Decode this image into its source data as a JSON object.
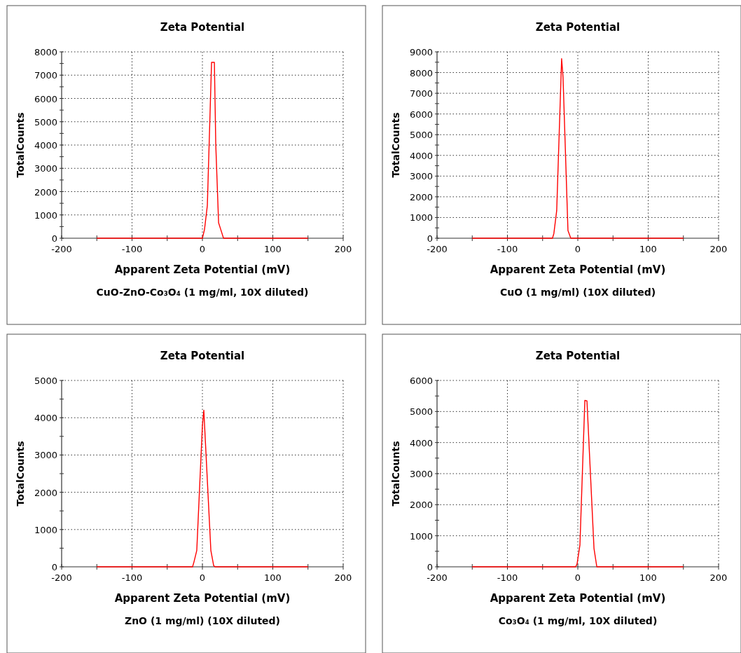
{
  "chart_data": [
    {
      "type": "line",
      "title": "Zeta Potential",
      "xlabel": "Apparent Zeta Potential (mV)",
      "ylabel": "TotalCounts",
      "annotations": [
        "CuO-ZnO-Co₃O₄ (1 mg/ml, 10X diluted)"
      ],
      "xlim": [
        -200,
        200
      ],
      "xticks": [
        -200,
        {
          "value": -150,
          "label": null
        },
        -100,
        {
          "value": -50,
          "label": null
        },
        0,
        {
          "value": 50,
          "label": null
        },
        100,
        {
          "value": 150,
          "label": null
        },
        200
      ],
      "ylim": [
        0,
        8000
      ],
      "yticks": [
        0,
        {
          "value": 500,
          "label": null
        },
        1000,
        {
          "value": 1500,
          "label": null
        },
        2000,
        {
          "value": 2500,
          "label": null
        },
        3000,
        {
          "value": 3500,
          "label": null
        },
        4000,
        {
          "value": 4500,
          "label": null
        },
        5000,
        {
          "value": 5500,
          "label": null
        },
        6000,
        {
          "value": 6500,
          "label": null
        },
        7000,
        {
          "value": 7500,
          "label": null
        },
        8000
      ],
      "grid": true,
      "marker": "none",
      "line_style": "solid",
      "series": [
        {
          "color": "#ff0000",
          "x": [
            -150,
            -100,
            -50,
            0,
            3,
            7,
            13,
            17,
            19,
            23,
            26,
            30,
            50,
            100,
            150
          ],
          "values": [
            0,
            0,
            0,
            0,
            380,
            1400,
            7550,
            7550,
            4000,
            660,
            380,
            0,
            0,
            0,
            0
          ]
        }
      ]
    },
    {
      "type": "line",
      "title": "Zeta Potential",
      "xlabel": "Apparent Zeta Potential (mV)",
      "ylabel": "TotalCounts",
      "annotations": [
        "CuO (1 mg/ml) (10X diluted)"
      ],
      "xlim": [
        -200,
        200
      ],
      "xticks": [
        -200,
        {
          "value": -150,
          "label": null
        },
        -100,
        {
          "value": -50,
          "label": null
        },
        0,
        {
          "value": 50,
          "label": null
        },
        100,
        {
          "value": 150,
          "label": null
        },
        200
      ],
      "ylim": [
        0,
        9000
      ],
      "yticks": [
        0,
        {
          "value": 500,
          "label": null
        },
        1000,
        {
          "value": 1500,
          "label": null
        },
        2000,
        {
          "value": 2500,
          "label": null
        },
        3000,
        {
          "value": 3500,
          "label": null
        },
        4000,
        {
          "value": 4500,
          "label": null
        },
        5000,
        {
          "value": 5500,
          "label": null
        },
        6000,
        {
          "value": 6500,
          "label": null
        },
        7000,
        {
          "value": 7500,
          "label": null
        },
        8000,
        {
          "value": 8500,
          "label": null
        },
        9000
      ],
      "grid": true,
      "marker": "none",
      "line_style": "solid",
      "series": [
        {
          "color": "#ff0000",
          "x": [
            -150,
            -100,
            -50,
            -36,
            -34,
            -30,
            -23,
            -21,
            -14,
            -10,
            0,
            50,
            100,
            150
          ],
          "values": [
            0,
            0,
            0,
            0,
            230,
            1330,
            8670,
            7780,
            370,
            0,
            0,
            0,
            0,
            0
          ]
        }
      ]
    },
    {
      "type": "line",
      "title": "Zeta Potential",
      "xlabel": "Apparent Zeta Potential (mV)",
      "ylabel": "TotalCounts",
      "annotations": [
        "ZnO (1 mg/ml) (10X diluted)"
      ],
      "xlim": [
        -200,
        200
      ],
      "xticks": [
        -200,
        {
          "value": -150,
          "label": null
        },
        -100,
        {
          "value": -50,
          "label": null
        },
        0,
        {
          "value": 50,
          "label": null
        },
        100,
        {
          "value": 150,
          "label": null
        },
        200
      ],
      "ylim": [
        0,
        5000
      ],
      "yticks": [
        0,
        {
          "value": 500,
          "label": null
        },
        1000,
        {
          "value": 1500,
          "label": null
        },
        2000,
        {
          "value": 2500,
          "label": null
        },
        3000,
        {
          "value": 3500,
          "label": null
        },
        4000,
        {
          "value": 4500,
          "label": null
        },
        5000
      ],
      "grid": true,
      "marker": "none",
      "line_style": "solid",
      "series": [
        {
          "color": "#ff0000",
          "x": [
            -150,
            -100,
            -50,
            -14,
            -12,
            -8,
            0,
            2,
            12,
            16,
            18,
            50,
            100,
            150
          ],
          "values": [
            0,
            0,
            0,
            0,
            130,
            440,
            3790,
            4200,
            440,
            30,
            0,
            0,
            0,
            0
          ]
        }
      ]
    },
    {
      "type": "line",
      "title": "Zeta Potential",
      "xlabel": "Apparent Zeta Potential (mV)",
      "ylabel": "TotalCounts",
      "annotations": [
        "Co₃O₄ (1 mg/ml, 10X diluted)"
      ],
      "xlim": [
        -200,
        200
      ],
      "xticks": [
        -200,
        {
          "value": -150,
          "label": null
        },
        -100,
        {
          "value": -50,
          "label": null
        },
        0,
        {
          "value": 50,
          "label": null
        },
        100,
        {
          "value": 150,
          "label": null
        },
        200
      ],
      "ylim": [
        0,
        6000
      ],
      "yticks": [
        0,
        {
          "value": 500,
          "label": null
        },
        1000,
        {
          "value": 1500,
          "label": null
        },
        2000,
        {
          "value": 2500,
          "label": null
        },
        3000,
        {
          "value": 3500,
          "label": null
        },
        4000,
        {
          "value": 4500,
          "label": null
        },
        5000,
        {
          "value": 5500,
          "label": null
        },
        6000
      ],
      "grid": true,
      "marker": "none",
      "line_style": "solid",
      "series": [
        {
          "color": "#ff0000",
          "x": [
            -150,
            -100,
            -50,
            -3,
            -1,
            3,
            10,
            13,
            23,
            27,
            50,
            100,
            150
          ],
          "values": [
            0,
            0,
            0,
            0,
            100,
            700,
            5360,
            5340,
            590,
            0,
            0,
            0,
            0
          ]
        }
      ]
    }
  ]
}
